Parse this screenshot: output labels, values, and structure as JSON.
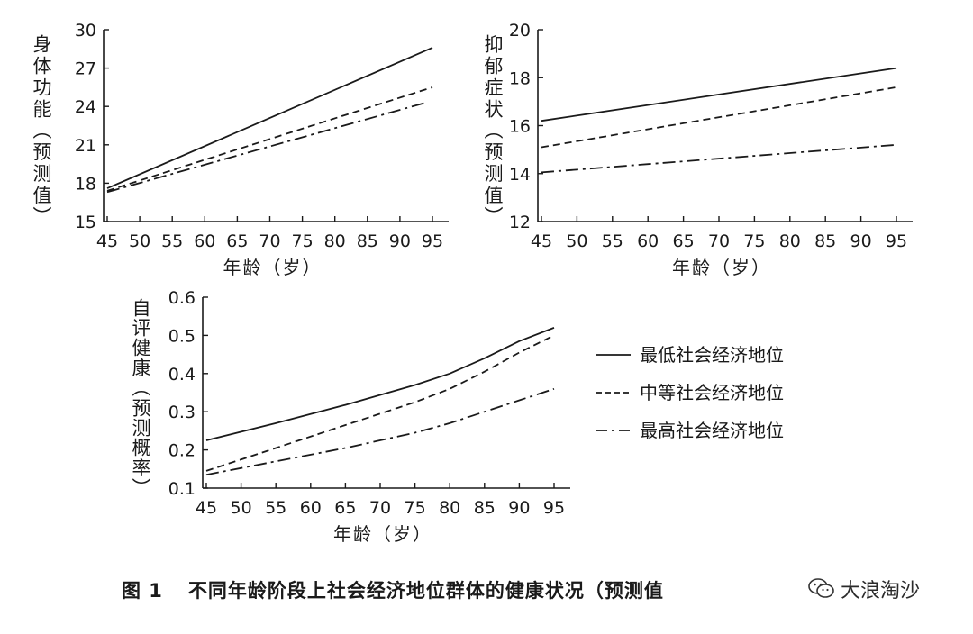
{
  "chart_data": [
    {
      "type": "line",
      "ylabel": "身体功能（预测值）",
      "xlabel": "年龄（岁）",
      "x": [
        45,
        50,
        55,
        60,
        65,
        70,
        75,
        80,
        85,
        90,
        95
      ],
      "ylim": [
        15,
        30
      ],
      "yticks": [
        "15",
        "18",
        "21",
        "24",
        "27",
        "30"
      ],
      "xticks": [
        "45",
        "50",
        "55",
        "60",
        "65",
        "70",
        "75",
        "80",
        "85",
        "90",
        "95"
      ],
      "series": [
        {
          "name": "最低社会经济地位",
          "style": "solid",
          "x": [
            45,
            95
          ],
          "values": [
            17.6,
            28.6
          ]
        },
        {
          "name": "中等社会经济地位",
          "style": "dashed",
          "x": [
            45,
            95
          ],
          "values": [
            17.4,
            25.5
          ]
        },
        {
          "name": "最高社会经济地位",
          "style": "dashdot",
          "x": [
            45,
            94
          ],
          "values": [
            17.3,
            24.3
          ]
        }
      ]
    },
    {
      "type": "line",
      "ylabel": "抑郁症状（预测值）",
      "xlabel": "年龄（岁）",
      "x": [
        45,
        50,
        55,
        60,
        65,
        70,
        75,
        80,
        85,
        90,
        95
      ],
      "ylim": [
        12,
        20
      ],
      "yticks": [
        "12",
        "14",
        "16",
        "18",
        "20"
      ],
      "xticks": [
        "45",
        "50",
        "55",
        "60",
        "65",
        "70",
        "75",
        "80",
        "85",
        "90",
        "95"
      ],
      "series": [
        {
          "name": "最低社会经济地位",
          "style": "solid",
          "x": [
            45,
            95
          ],
          "values": [
            16.2,
            18.4
          ]
        },
        {
          "name": "中等社会经济地位",
          "style": "dashed",
          "x": [
            45,
            95
          ],
          "values": [
            15.1,
            17.6
          ]
        },
        {
          "name": "最高社会经济地位",
          "style": "dashdot",
          "x": [
            45,
            95
          ],
          "values": [
            14.05,
            15.2
          ]
        }
      ]
    },
    {
      "type": "line",
      "ylabel": "自评健康（预测概率）",
      "xlabel": "年龄（岁）",
      "x": [
        45,
        50,
        55,
        60,
        65,
        70,
        75,
        80,
        85,
        90,
        95
      ],
      "ylim": [
        0.1,
        0.6
      ],
      "yticks": [
        "0.1",
        "0.2",
        "0.3",
        "0.4",
        "0.5",
        "0.6"
      ],
      "xticks": [
        "45",
        "50",
        "55",
        "60",
        "65",
        "70",
        "75",
        "80",
        "85",
        "90",
        "95"
      ],
      "series": [
        {
          "name": "最低社会经济地位",
          "style": "solid",
          "x": [
            45,
            55,
            65,
            75,
            80,
            85,
            90,
            95
          ],
          "values": [
            0.225,
            0.27,
            0.318,
            0.37,
            0.4,
            0.44,
            0.485,
            0.52
          ]
        },
        {
          "name": "中等社会经济地位",
          "style": "dashed",
          "x": [
            45,
            55,
            65,
            75,
            80,
            85,
            90,
            95
          ],
          "values": [
            0.145,
            0.205,
            0.265,
            0.325,
            0.36,
            0.405,
            0.455,
            0.5
          ]
        },
        {
          "name": "最高社会经济地位",
          "style": "dashdot",
          "x": [
            45,
            55,
            65,
            75,
            80,
            85,
            90,
            95
          ],
          "values": [
            0.135,
            0.17,
            0.205,
            0.245,
            0.27,
            0.3,
            0.33,
            0.36
          ]
        }
      ]
    }
  ],
  "legend": [
    {
      "label": "最低社会经济地位",
      "style": "solid"
    },
    {
      "label": "中等社会经济地位",
      "style": "dashed"
    },
    {
      "label": "最高社会经济地位",
      "style": "dashdot"
    }
  ],
  "caption": {
    "num": "图 1",
    "text": "不同年龄阶段上社会经济地位群体的健康状况（预测值"
  },
  "watermark": {
    "text": "大浪淘沙",
    "icon": "wechat-icon"
  },
  "colors": {
    "ink": "#1a1a1a"
  }
}
